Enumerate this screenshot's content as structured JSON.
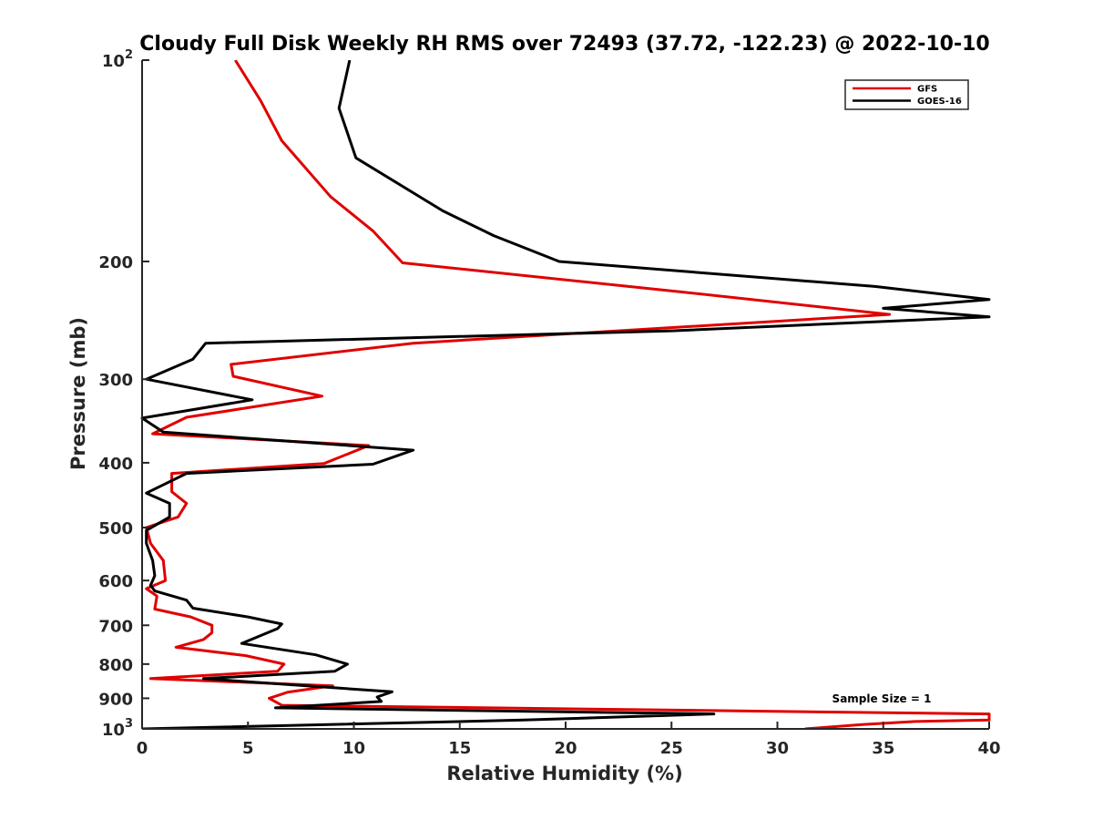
{
  "chart_data": {
    "type": "line",
    "title": "Cloudy Full Disk Weekly RH RMS over 72493 (37.72, -122.23) @ 2022-10-10",
    "xlabel": "Relative Humidity (%)",
    "ylabel": "Pressure (mb)",
    "xlim": [
      0,
      40
    ],
    "ylim": [
      100,
      1000
    ],
    "y_scale": "log",
    "y_reversed": true,
    "grid": false,
    "legend_position": "top-right",
    "x_ticks": [
      "0",
      "5",
      "10",
      "15",
      "20",
      "25",
      "30",
      "35",
      "40"
    ],
    "y_ticks": [
      {
        "value": 100,
        "base": "10",
        "exp": "2"
      },
      {
        "value": 200,
        "label": "200"
      },
      {
        "value": 300,
        "label": "300"
      },
      {
        "value": 400,
        "label": "400"
      },
      {
        "value": 500,
        "label": "500"
      },
      {
        "value": 600,
        "label": "600"
      },
      {
        "value": 700,
        "label": "700"
      },
      {
        "value": 800,
        "label": "800"
      },
      {
        "value": 900,
        "label": "900"
      },
      {
        "value": 1000,
        "base": "10",
        "exp": "3"
      }
    ],
    "series": [
      {
        "name": "GFS",
        "color": "#e00000",
        "points": [
          [
            4.4,
            100
          ],
          [
            5.6,
            115
          ],
          [
            6.6,
            132
          ],
          [
            8.9,
            160
          ],
          [
            10.9,
            180
          ],
          [
            12.3,
            201
          ],
          [
            25.4,
            222
          ],
          [
            35.3,
            240
          ],
          [
            12.8,
            265
          ],
          [
            4.2,
            285
          ],
          [
            4.3,
            297
          ],
          [
            8.5,
            318
          ],
          [
            2.1,
            342
          ],
          [
            0.5,
            362
          ],
          [
            10.7,
            377
          ],
          [
            8.6,
            401
          ],
          [
            1.4,
            415
          ],
          [
            1.4,
            442
          ],
          [
            2.1,
            460
          ],
          [
            1.7,
            482
          ],
          [
            0.2,
            500
          ],
          [
            0.4,
            528
          ],
          [
            1.0,
            560
          ],
          [
            1.1,
            600
          ],
          [
            0.2,
            617
          ],
          [
            0.7,
            633
          ],
          [
            0.6,
            662
          ],
          [
            2.3,
            680
          ],
          [
            3.3,
            700
          ],
          [
            3.3,
            718
          ],
          [
            2.9,
            735
          ],
          [
            1.6,
            755
          ],
          [
            4.9,
            777
          ],
          [
            6.7,
            800
          ],
          [
            6.4,
            820
          ],
          [
            0.4,
            841
          ],
          [
            9.0,
            862
          ],
          [
            6.9,
            881
          ],
          [
            6.0,
            900
          ],
          [
            6.6,
            922
          ],
          [
            40.0,
            950
          ],
          [
            40.0,
            970
          ],
          [
            36.5,
            975
          ],
          [
            34.0,
            985
          ],
          [
            31.3,
            1000
          ]
        ]
      },
      {
        "name": "GOES-16",
        "color": "#000000",
        "points": [
          [
            9.8,
            100
          ],
          [
            9.3,
            118
          ],
          [
            10.1,
            140
          ],
          [
            14.2,
            168
          ],
          [
            16.6,
            183
          ],
          [
            19.7,
            200
          ],
          [
            34.6,
            218
          ],
          [
            40.0,
            228
          ],
          [
            35.0,
            235
          ],
          [
            40.0,
            242
          ],
          [
            25.0,
            254
          ],
          [
            3.0,
            265
          ],
          [
            2.4,
            280
          ],
          [
            0.2,
            300
          ],
          [
            5.2,
            322
          ],
          [
            0.0,
            343
          ],
          [
            1.0,
            360
          ],
          [
            12.8,
            383
          ],
          [
            10.9,
            402
          ],
          [
            2.1,
            415
          ],
          [
            0.2,
            444
          ],
          [
            1.3,
            460
          ],
          [
            1.3,
            482
          ],
          [
            0.2,
            505
          ],
          [
            0.2,
            528
          ],
          [
            0.5,
            560
          ],
          [
            0.6,
            590
          ],
          [
            0.4,
            610
          ],
          [
            0.6,
            622
          ],
          [
            2.1,
            642
          ],
          [
            2.4,
            660
          ],
          [
            5.0,
            680
          ],
          [
            6.6,
            697
          ],
          [
            6.4,
            708
          ],
          [
            4.7,
            745
          ],
          [
            8.2,
            775
          ],
          [
            9.7,
            800
          ],
          [
            9.1,
            820
          ],
          [
            2.9,
            841
          ],
          [
            11.8,
            880
          ],
          [
            11.1,
            896
          ],
          [
            11.3,
            910
          ],
          [
            6.3,
            930
          ],
          [
            27.0,
            950
          ],
          [
            18.0,
            970
          ],
          [
            0.0,
            1000
          ]
        ]
      }
    ],
    "annotation": "Sample Size = 1"
  }
}
